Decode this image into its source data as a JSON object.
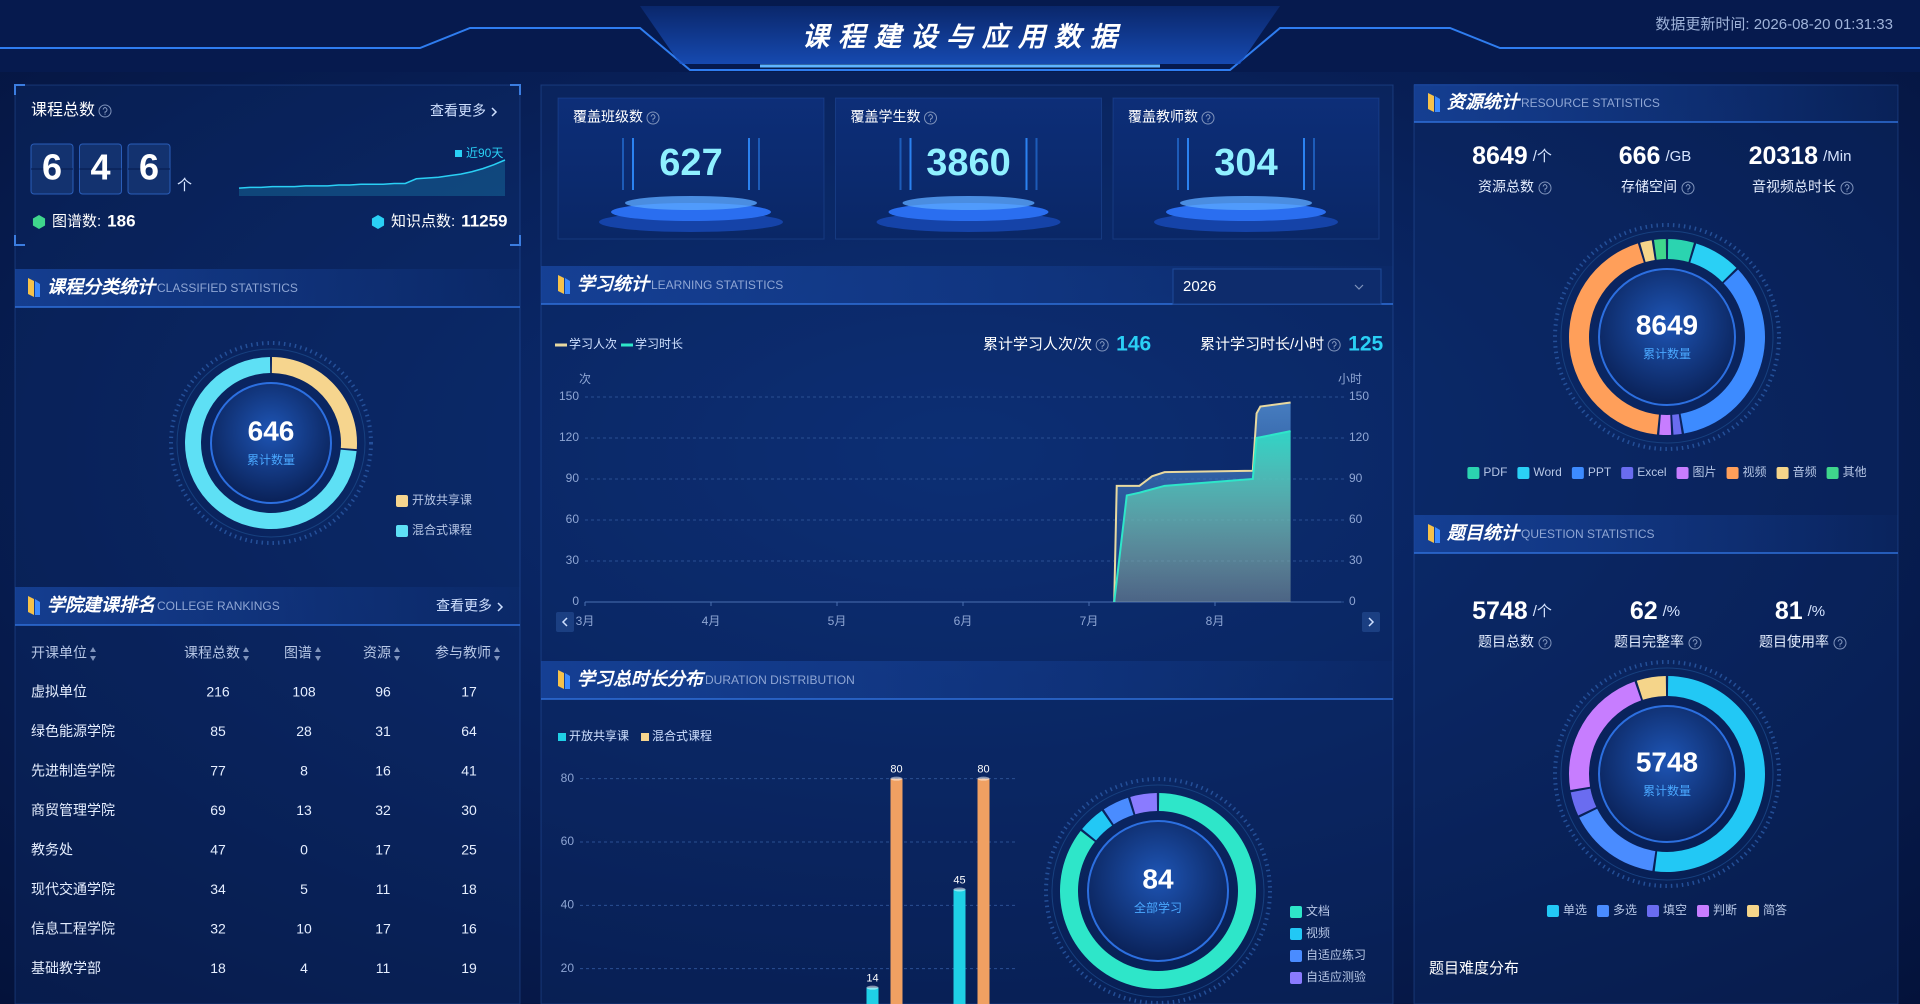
{
  "header": {
    "title": "课程建设与应用数据",
    "update_time": "数据更新时间: 2026-08-20 01:31:33"
  },
  "course_total": {
    "label": "课程总数",
    "more": "查看更多",
    "digits": [
      "6",
      "4",
      "6"
    ],
    "unit": "个",
    "legend": "近90天",
    "trend": [
      10,
      11,
      11,
      12,
      12,
      12,
      13,
      13,
      13,
      14,
      14,
      15,
      15,
      15,
      16,
      16,
      22,
      23,
      24,
      26,
      28,
      31,
      35,
      40,
      46
    ],
    "stats": [
      {
        "label": "图谱数:",
        "value": 186
      },
      {
        "label": "知识点数:",
        "value": 11259
      }
    ]
  },
  "classified": {
    "title": "课程分类统计",
    "subtitle": "CLASSIFIED STATISTICS",
    "chart": {
      "type": "pie",
      "center_value": 646,
      "center_label": "累计数量",
      "categories": [
        "开放共享课",
        "混合式课程"
      ],
      "values": [
        170,
        476
      ],
      "colors": [
        "#f6d58e",
        "#5ee0f5"
      ]
    }
  },
  "rankings": {
    "title": "学院建课排名",
    "subtitle": "COLLEGE RANKINGS",
    "more": "查看更多",
    "columns": [
      "开课单位",
      "课程总数",
      "图谱",
      "资源",
      "参与教师"
    ],
    "rows": [
      [
        "虚拟单位",
        216,
        108,
        96,
        17
      ],
      [
        "绿色能源学院",
        85,
        28,
        31,
        64
      ],
      [
        "先进制造学院",
        77,
        8,
        16,
        41
      ],
      [
        "商贸管理学院",
        69,
        13,
        32,
        30
      ],
      [
        "教务处",
        47,
        0,
        17,
        25
      ],
      [
        "现代交通学院",
        34,
        5,
        11,
        18
      ],
      [
        "信息工程学院",
        32,
        10,
        17,
        16
      ],
      [
        "基础教学部",
        18,
        4,
        11,
        19
      ]
    ]
  },
  "kpis": [
    {
      "label": "覆盖班级数",
      "value": 627
    },
    {
      "label": "覆盖学生数",
      "value": 3860
    },
    {
      "label": "覆盖教师数",
      "value": 304
    }
  ],
  "learning": {
    "title": "学习统计",
    "subtitle": "LEARNING STATISTICS",
    "year": "2026",
    "summary": [
      {
        "label": "累计学习人次/次",
        "value": 146
      },
      {
        "label": "累计学习时长/小时",
        "value": 125
      }
    ],
    "chart": {
      "type": "area",
      "y_unit": "次",
      "y2_unit": "小时",
      "series": [
        {
          "name": "学习人次",
          "color": "#e8d9a0",
          "x": [
            7.2,
            7.22,
            7.4,
            7.5,
            7.6,
            8.3,
            8.33,
            8.36,
            8.6
          ],
          "values": [
            0,
            85,
            85,
            92,
            95,
            96,
            138,
            143,
            146
          ]
        },
        {
          "name": "学习时长",
          "color": "#2ee6c9",
          "axis": "y2",
          "x": [
            7.2,
            7.3,
            7.4,
            7.6,
            8.3,
            8.33,
            8.6
          ],
          "values": [
            0,
            78,
            80,
            85,
            90,
            120,
            125
          ]
        }
      ],
      "xlim": [
        3,
        9
      ],
      "xticks": [
        {
          "value": 3,
          "label": "3月"
        },
        {
          "value": 4,
          "label": "4月"
        },
        {
          "value": 5,
          "label": "5月"
        },
        {
          "value": 6,
          "label": "6月"
        },
        {
          "value": 7,
          "label": "7月"
        },
        {
          "value": 8,
          "label": "8月"
        }
      ],
      "ylim": [
        0,
        150
      ],
      "yticks": [
        0,
        30,
        60,
        90,
        120,
        150
      ],
      "y2lim": [
        0,
        150
      ],
      "y2ticks": [
        0,
        30,
        60,
        90,
        120,
        150
      ]
    }
  },
  "duration": {
    "title": "学习总时长分布",
    "subtitle": "DURATION DISTRIBUTION",
    "bars": {
      "type": "bar",
      "categories": [
        null,
        null,
        null,
        null,
        null
      ],
      "series": [
        {
          "name": "开放共享课",
          "color": "#1fd0e6",
          "values": [
            null,
            null,
            null,
            14,
            45
          ]
        },
        {
          "name": "混合式课程",
          "color": "#f0a062",
          "values": [
            null,
            null,
            null,
            80,
            80
          ]
        }
      ],
      "ylim": [
        0,
        90
      ],
      "yticks": [
        20,
        40,
        60,
        80
      ]
    },
    "donut": {
      "type": "pie",
      "center_value": 84,
      "center_label": "全部学习",
      "categories": [
        "文档",
        "视频",
        "自适应练习",
        "自适应测验"
      ],
      "values": [
        72,
        4,
        4,
        4
      ],
      "colors": [
        "#2ee6c9",
        "#22c8f5",
        "#4a8cff",
        "#8a7bff"
      ]
    }
  },
  "resources": {
    "title": "资源统计",
    "subtitle": "RESOURCE STATISTICS",
    "stats": [
      {
        "value": 8649,
        "unit": "/个",
        "label": "资源总数"
      },
      {
        "value": 666,
        "unit": "/GB",
        "label": "存储空间"
      },
      {
        "value": 20318,
        "unit": "/Min",
        "label": "音视频总时长"
      }
    ],
    "chart": {
      "type": "pie",
      "center_value": 8649,
      "center_label": "累计数量",
      "categories": [
        "PDF",
        "Word",
        "PPT",
        "Excel",
        "图片",
        "视频",
        "音频",
        "其他"
      ],
      "values": [
        400,
        700,
        3000,
        150,
        200,
        3800,
        199,
        200
      ],
      "colors": [
        "#2bd4b0",
        "#2ad0f5",
        "#3d8bff",
        "#6a6cf0",
        "#c77dff",
        "#ff9f5a",
        "#f5d58a",
        "#3fd68c"
      ]
    }
  },
  "questions": {
    "title": "题目统计",
    "subtitle": "QUESTION STATISTICS",
    "stats": [
      {
        "value": 5748,
        "unit": "/个",
        "label": "题目总数"
      },
      {
        "value": 62,
        "unit": "/%",
        "label": "题目完整率"
      },
      {
        "value": 81,
        "unit": "/%",
        "label": "题目使用率"
      }
    ],
    "chart": {
      "type": "pie",
      "center_value": 5748,
      "center_label": "累计数量",
      "categories": [
        "单选",
        "多选",
        "填空",
        "判断",
        "简答"
      ],
      "values": [
        3000,
        900,
        250,
        1300,
        298
      ],
      "colors": [
        "#22c8f5",
        "#4a8cff",
        "#6a6cf0",
        "#c77dff",
        "#f5d58a"
      ]
    },
    "difficulty_title": "题目难度分布"
  }
}
